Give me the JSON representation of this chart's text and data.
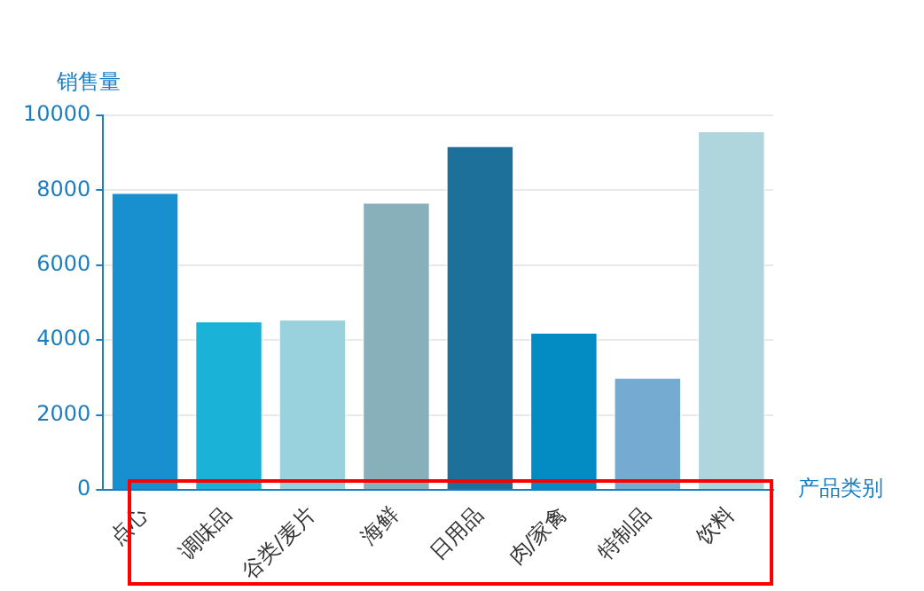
{
  "chart_data": {
    "type": "bar",
    "ylabel": "销售量",
    "xlabel": "产品类别",
    "categories": [
      "点心",
      "调味品",
      "谷类/麦片",
      "海鲜",
      "日用品",
      "肉/家禽",
      "特制品",
      "饮料"
    ],
    "values": [
      7950,
      4520,
      4570,
      7690,
      9200,
      4220,
      3015,
      9600
    ],
    "colors": [
      "#1890d0",
      "#1bb2d8",
      "#99d2dd",
      "#88b0bb",
      "#1c7099",
      "#038cc4",
      "#75abd0",
      "#afd6dd"
    ],
    "ylim": [
      0,
      10000
    ],
    "yticks": [
      0,
      2000,
      4000,
      6000,
      8000,
      10000
    ],
    "grid": "y",
    "legend": false
  }
}
